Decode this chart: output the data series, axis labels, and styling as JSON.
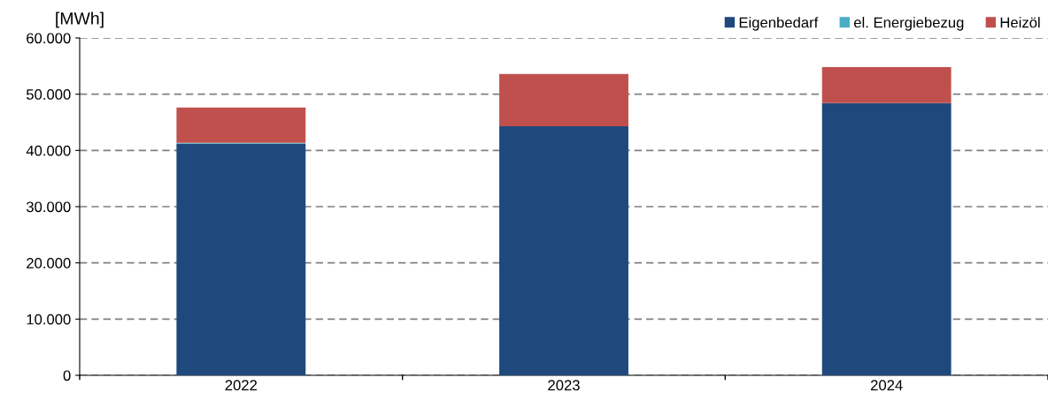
{
  "chart_data": {
    "type": "bar",
    "stacked": true,
    "ylabel": "[MWh]",
    "categories": [
      "2022",
      "2023",
      "2024"
    ],
    "series": [
      {
        "name": "Eigenbedarf",
        "color": "#1f497d",
        "values": [
          41200,
          44300,
          48400
        ]
      },
      {
        "name": "el. Energiebezug",
        "color": "#4bacc6",
        "values": [
          150,
          0,
          0
        ]
      },
      {
        "name": "Heizöl",
        "color": "#c0504d",
        "values": [
          6300,
          9300,
          6400
        ]
      }
    ],
    "ylim": [
      0,
      60000
    ],
    "yticks": [
      0,
      {
        "value": 10000,
        "label": "10.000"
      },
      {
        "value": 20000,
        "label": "20.000"
      },
      {
        "value": 30000,
        "label": "30.000"
      },
      {
        "value": 40000,
        "label": "40.000"
      },
      {
        "value": 50000,
        "label": "50.000"
      },
      {
        "value": 60000,
        "label": "60.000"
      }
    ],
    "grid": "y",
    "legend": "top right"
  }
}
